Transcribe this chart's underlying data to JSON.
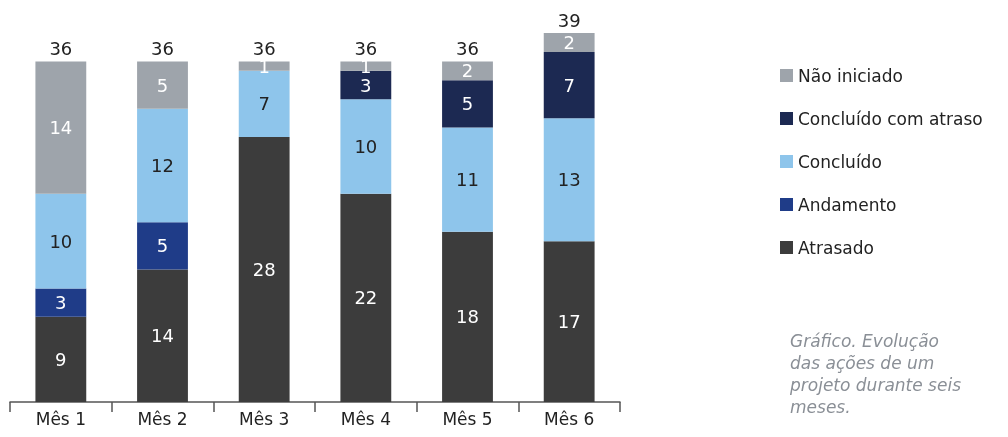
{
  "chart_data": {
    "type": "bar",
    "stacked": true,
    "data_labels": true,
    "legend": "right",
    "categories": [
      "Mês 1",
      "Mês 2",
      "Mês 3",
      "Mês 4",
      "Mês 5",
      "Mês 6"
    ],
    "series": [
      {
        "name": "Atrasado",
        "color": "#3c3c3c",
        "values": [
          9,
          14,
          28,
          22,
          18,
          17
        ]
      },
      {
        "name": "Andamento",
        "color": "#1f3c88",
        "values": [
          3,
          5,
          null,
          null,
          null,
          null
        ]
      },
      {
        "name": "Concluído",
        "color": "#8ec5eb",
        "values": [
          10,
          12,
          7,
          10,
          11,
          13
        ]
      },
      {
        "name": "Concluído com atraso",
        "color": "#1c2952",
        "values": [
          null,
          null,
          null,
          3,
          5,
          7
        ]
      },
      {
        "name": "Não iniciado",
        "color": "#9ea4ab",
        "values": [
          14,
          5,
          1,
          1,
          2,
          2
        ]
      }
    ],
    "totals": [
      "36",
      "36",
      "36",
      "36",
      "36",
      "39"
    ],
    "annotations": [
      "Gráfico. Evolução das ações de um projeto durante seis meses."
    ]
  }
}
